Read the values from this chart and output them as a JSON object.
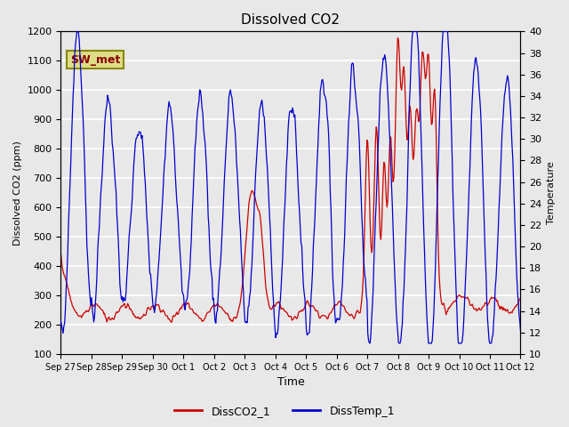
{
  "title": "Dissolved CO2",
  "xlabel": "Time",
  "ylabel_left": "Dissolved CO2 (ppm)",
  "ylabel_right": "Temperature",
  "ylim_left": [
    100,
    1200
  ],
  "ylim_right": [
    10,
    40
  ],
  "yticks_left": [
    100,
    200,
    300,
    400,
    500,
    600,
    700,
    800,
    900,
    1000,
    1100,
    1200
  ],
  "yticks_right": [
    10,
    12,
    14,
    16,
    18,
    20,
    22,
    24,
    26,
    28,
    30,
    32,
    34,
    36,
    38,
    40
  ],
  "bg_color": "#e8e8e8",
  "grid_color": "#ffffff",
  "legend_items": [
    "DissCO2_1",
    "DissTemp_1"
  ],
  "legend_colors": [
    "#cc0000",
    "#0000cc"
  ],
  "annotation_text": "SW_met",
  "annotation_bg": "#dddd88",
  "annotation_border": "#888800",
  "co2_color": "#cc0000",
  "temp_color": "#0000cc",
  "xticklabels": [
    "Sep 27",
    "Sep 28",
    "Sep 29",
    "Sep 30",
    "Oct 1",
    "Oct 2",
    "Oct 3",
    "Oct 4",
    "Oct 5",
    "Oct 6",
    "Oct 7",
    "Oct 8",
    "Oct 9",
    "Oct 10",
    "Oct 11",
    "Oct 12"
  ],
  "n_days": 15,
  "n_points": 600
}
